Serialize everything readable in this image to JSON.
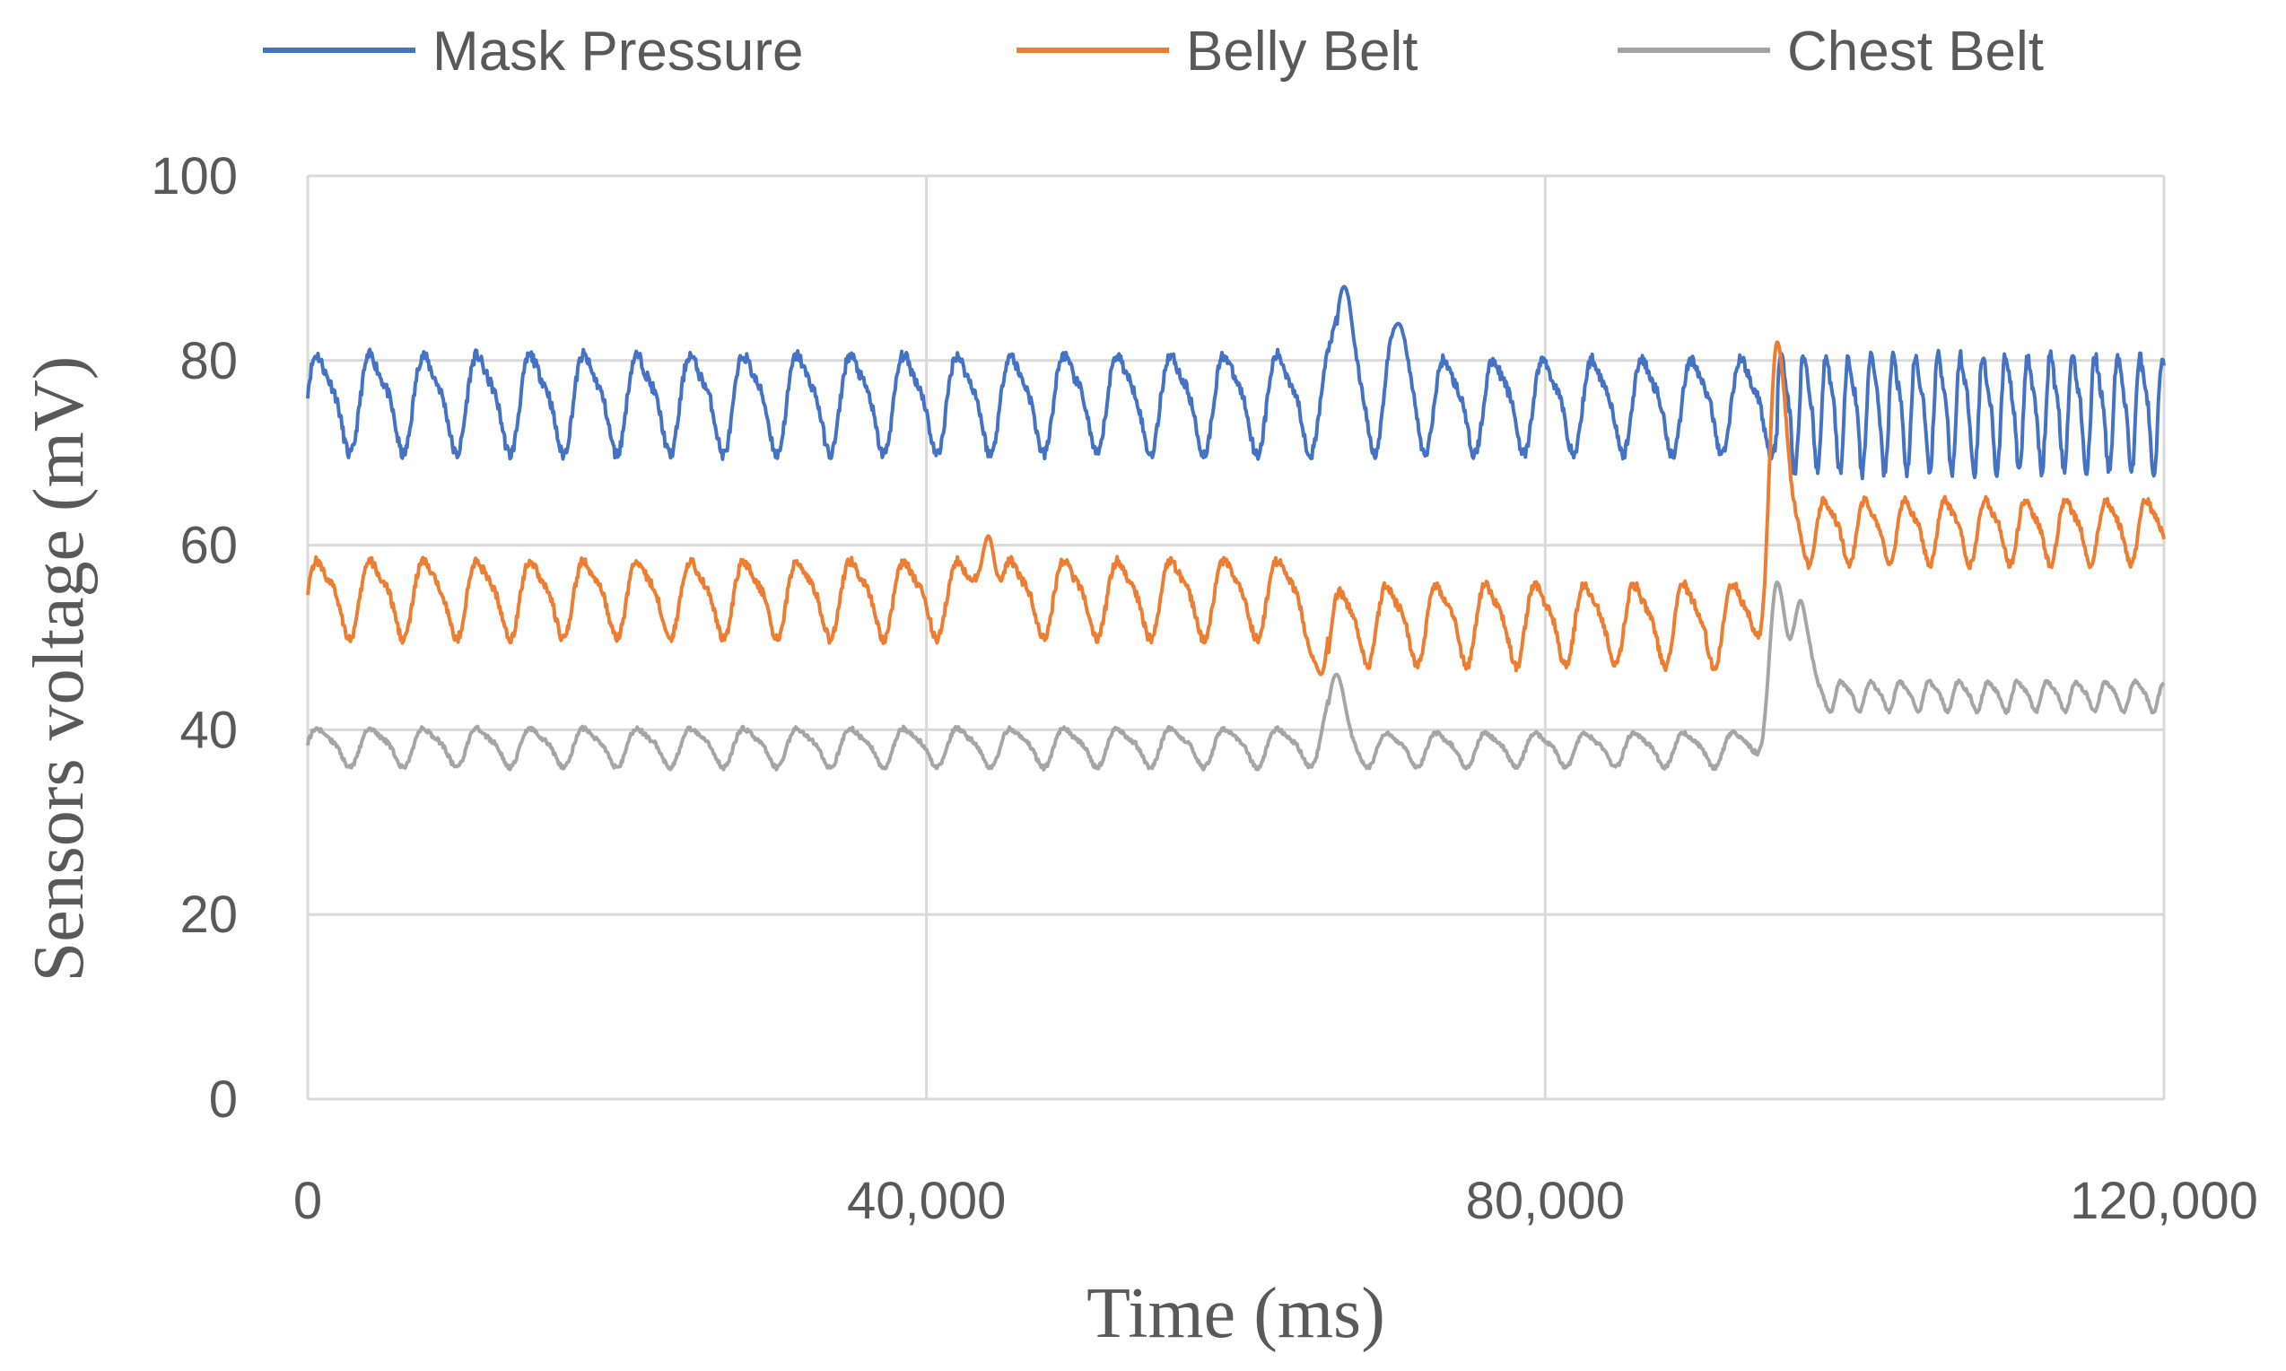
{
  "chart_data": {
    "type": "line",
    "title": "",
    "xlabel": "Time (ms)",
    "ylabel": "Sensors voltage (mV)",
    "xlim": [
      0,
      120000
    ],
    "ylim": [
      0,
      100
    ],
    "x_ticks": [
      0,
      40000,
      80000,
      120000
    ],
    "x_tick_labels": [
      "0",
      "40,000",
      "80,000",
      "120,000"
    ],
    "y_ticks": [
      0,
      20,
      40,
      60,
      80,
      100
    ],
    "y_tick_labels": [
      "0",
      "20",
      "40",
      "60",
      "80",
      "100"
    ],
    "grid": true,
    "legend_position": "top",
    "series": [
      {
        "name": "Mask Pressure",
        "color": "#4472C4",
        "segments": [
          {
            "x_start": 0,
            "x_end": 66500,
            "period": 3450,
            "min": 70,
            "max": 81.5
          },
          {
            "x_start": 66500,
            "x_end": 95000,
            "period": 3200,
            "min": 70,
            "max": 81
          },
          {
            "x_start": 95000,
            "x_end": 120000,
            "period": 1450,
            "min": 68,
            "max": 81.5
          }
        ],
        "events": [
          {
            "x": 67000,
            "y": 88
          },
          {
            "x": 70500,
            "y": 84
          }
        ]
      },
      {
        "name": "Belly Belt",
        "color": "#ED7D31",
        "segments": [
          {
            "x_start": 0,
            "x_end": 66000,
            "period": 3450,
            "min": 50,
            "max": 59
          },
          {
            "x_start": 66000,
            "x_end": 95000,
            "period": 3200,
            "min": 47,
            "max": 56.5
          },
          {
            "x_start": 95000,
            "x_end": 120000,
            "period": 2600,
            "min": 58,
            "max": 65.5
          }
        ],
        "events": [
          {
            "x": 44000,
            "y": 61
          },
          {
            "x": 95000,
            "y": 82
          },
          {
            "x": 65500,
            "y": 46
          }
        ]
      },
      {
        "name": "Chest Belt",
        "color": "#A5A5A5",
        "segments": [
          {
            "x_start": 0,
            "x_end": 66000,
            "period": 3450,
            "min": 36,
            "max": 40.5
          },
          {
            "x_start": 66000,
            "x_end": 95000,
            "period": 3200,
            "min": 36,
            "max": 40
          },
          {
            "x_start": 95000,
            "x_end": 120000,
            "period": 1900,
            "min": 42,
            "max": 45.5
          }
        ],
        "events": [
          {
            "x": 66500,
            "y": 46
          },
          {
            "x": 95000,
            "y": 56
          },
          {
            "x": 96500,
            "y": 54
          }
        ]
      }
    ]
  }
}
